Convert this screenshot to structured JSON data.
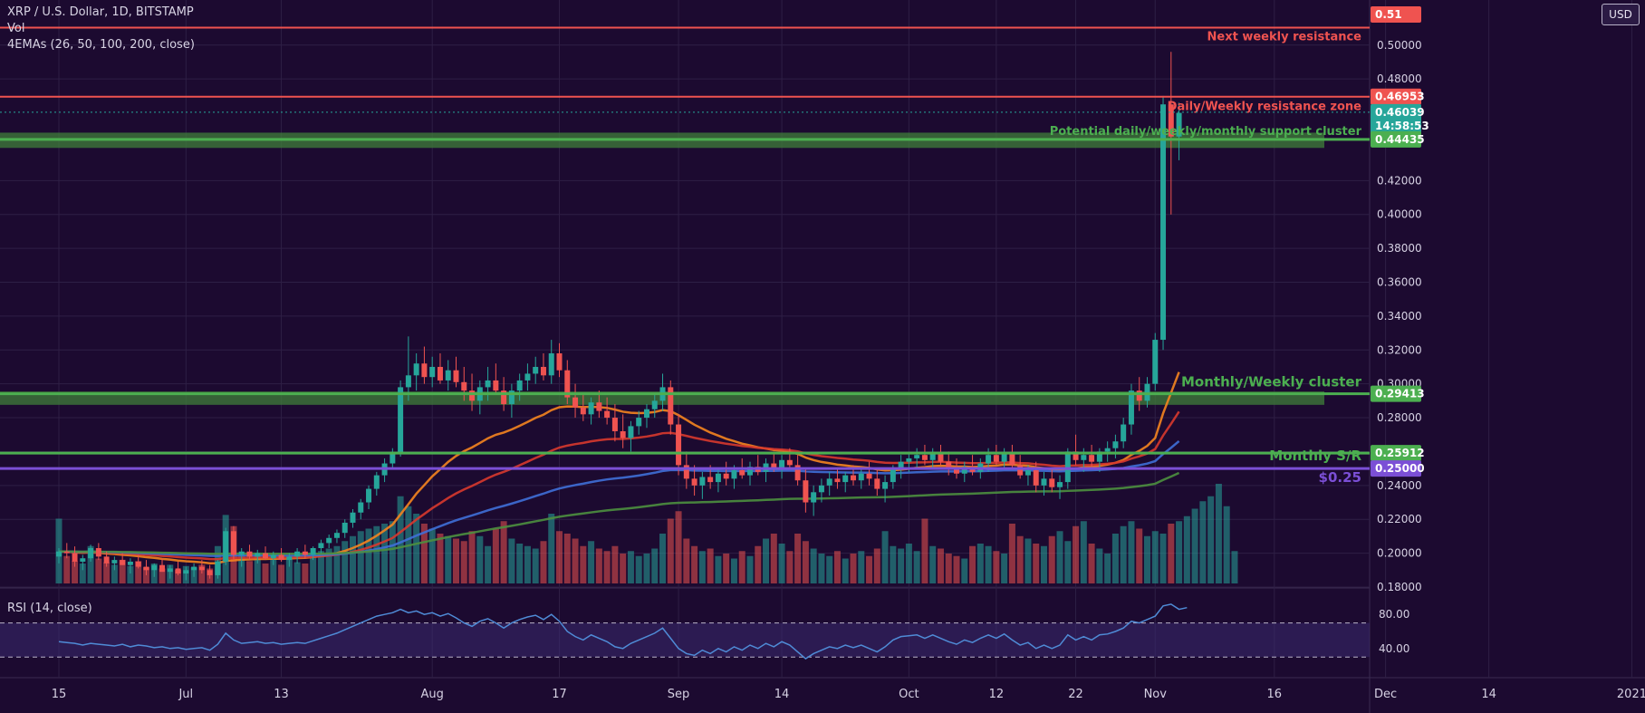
{
  "header": {
    "title": "XRP / U.S. Dollar, 1D, BITSTAMP",
    "vol_label": "Vol",
    "ema_label": "4EMAs (26, 50, 100, 200, close)",
    "rsi_label": "RSI (14, close)",
    "currency_button": "USD"
  },
  "colors": {
    "background": "#1c0a30",
    "up": "#26a69a",
    "down": "#ef5350",
    "resistance": "#ef5350",
    "support": "#4caf50",
    "level_025": "#7b4fd6",
    "ema26": "#f5841f",
    "ema50": "#d8382e",
    "ema100": "#3f6fd8",
    "ema200": "#4d8f3f",
    "rsi": "#4f8bd6"
  },
  "chart_data": {
    "type": "candlestick",
    "symbol": "XRP / U.S. Dollar",
    "interval": "1D",
    "exchange": "BITSTAMP",
    "y_axis": {
      "ticks": [
        "0.50000",
        "0.48000",
        "0.42000",
        "0.40000",
        "0.38000",
        "0.36000",
        "0.34000",
        "0.32000",
        "0.30000",
        "0.28000",
        "0.26000",
        "0.24000",
        "0.22000",
        "0.20000",
        "0.18000"
      ],
      "ylim": [
        0.18,
        0.517
      ]
    },
    "x_axis": {
      "labels": [
        {
          "label": "15",
          "index": 0
        },
        {
          "label": "Jul",
          "index": 16
        },
        {
          "label": "13",
          "index": 28
        },
        {
          "label": "Aug",
          "index": 47
        },
        {
          "label": "17",
          "index": 63
        },
        {
          "label": "Sep",
          "index": 78
        },
        {
          "label": "14",
          "index": 91
        },
        {
          "label": "Oct",
          "index": 107
        },
        {
          "label": "12",
          "index": 118
        },
        {
          "label": "22",
          "index": 128
        },
        {
          "label": "Nov",
          "index": 138
        },
        {
          "label": "16",
          "index": 153
        },
        {
          "label": "Dec",
          "index": 167
        },
        {
          "label": "14",
          "index": 180
        },
        {
          "label": "2021",
          "index": 198
        }
      ]
    },
    "price_tags": [
      {
        "value": "0.51",
        "price": 0.5103,
        "color": "#ef5350"
      },
      {
        "value": "0.46953",
        "price": 0.46953,
        "color": "#ef5350"
      },
      {
        "value": "0.46039",
        "price": 0.46039,
        "color": "#26a69a"
      },
      {
        "value": "14:58:53",
        "price": 0.4522,
        "color": "#26a69a"
      },
      {
        "value": "0.44435",
        "price": 0.44435,
        "color": "#4caf50"
      },
      {
        "value": "0.29413",
        "price": 0.29413,
        "color": "#4caf50"
      },
      {
        "value": "0.25912",
        "price": 0.25912,
        "color": "#4caf50"
      },
      {
        "value": "0.25000",
        "price": 0.25,
        "color": "#7b4fd6"
      }
    ],
    "levels": [
      {
        "label": "Next weekly resistance",
        "price": 0.5103,
        "type": "resistance"
      },
      {
        "label": "Daily/Weekly resistance zone",
        "price": 0.46953,
        "type": "resistance"
      },
      {
        "label": "Potential daily/weekly/monthly support cluster",
        "price": 0.44435,
        "zone_top": 0.4483,
        "zone_bottom": 0.4393,
        "type": "support"
      },
      {
        "label": "Monthly/Weekly cluster",
        "price": 0.29413,
        "zone_top": 0.2955,
        "zone_bottom": 0.2876,
        "type": "support"
      },
      {
        "label": "Monthly S/R",
        "price": 0.25912,
        "type": "support"
      },
      {
        "label": "$0.25",
        "price": 0.25,
        "type": "level"
      }
    ],
    "candles_ohlc": [
      [
        0.198,
        0.203,
        0.194,
        0.201
      ],
      [
        0.201,
        0.206,
        0.197,
        0.2
      ],
      [
        0.2,
        0.204,
        0.192,
        0.195
      ],
      [
        0.195,
        0.199,
        0.19,
        0.197
      ],
      [
        0.197,
        0.205,
        0.195,
        0.203
      ],
      [
        0.203,
        0.206,
        0.196,
        0.198
      ],
      [
        0.198,
        0.201,
        0.192,
        0.194
      ],
      [
        0.194,
        0.198,
        0.19,
        0.196
      ],
      [
        0.196,
        0.2,
        0.193,
        0.193
      ],
      [
        0.193,
        0.197,
        0.188,
        0.195
      ],
      [
        0.195,
        0.199,
        0.191,
        0.192
      ],
      [
        0.192,
        0.196,
        0.187,
        0.19
      ],
      [
        0.19,
        0.194,
        0.186,
        0.193
      ],
      [
        0.193,
        0.197,
        0.189,
        0.189
      ],
      [
        0.189,
        0.193,
        0.185,
        0.191
      ],
      [
        0.191,
        0.195,
        0.187,
        0.188
      ],
      [
        0.188,
        0.192,
        0.184,
        0.19
      ],
      [
        0.19,
        0.194,
        0.186,
        0.192
      ],
      [
        0.192,
        0.196,
        0.188,
        0.19
      ],
      [
        0.19,
        0.193,
        0.185,
        0.187
      ],
      [
        0.187,
        0.196,
        0.185,
        0.195
      ],
      [
        0.195,
        0.215,
        0.193,
        0.213
      ],
      [
        0.213,
        0.216,
        0.196,
        0.199
      ],
      [
        0.199,
        0.203,
        0.192,
        0.201
      ],
      [
        0.201,
        0.205,
        0.196,
        0.198
      ],
      [
        0.198,
        0.202,
        0.194,
        0.2
      ],
      [
        0.2,
        0.204,
        0.196,
        0.197
      ],
      [
        0.197,
        0.201,
        0.193,
        0.199
      ],
      [
        0.199,
        0.203,
        0.195,
        0.196
      ],
      [
        0.196,
        0.2,
        0.192,
        0.198
      ],
      [
        0.198,
        0.203,
        0.194,
        0.201
      ],
      [
        0.201,
        0.205,
        0.197,
        0.199
      ],
      [
        0.199,
        0.204,
        0.196,
        0.203
      ],
      [
        0.203,
        0.208,
        0.2,
        0.206
      ],
      [
        0.206,
        0.211,
        0.203,
        0.209
      ],
      [
        0.209,
        0.214,
        0.206,
        0.212
      ],
      [
        0.212,
        0.22,
        0.209,
        0.218
      ],
      [
        0.218,
        0.226,
        0.215,
        0.224
      ],
      [
        0.224,
        0.232,
        0.22,
        0.23
      ],
      [
        0.23,
        0.24,
        0.226,
        0.238
      ],
      [
        0.238,
        0.248,
        0.234,
        0.246
      ],
      [
        0.246,
        0.256,
        0.242,
        0.253
      ],
      [
        0.253,
        0.262,
        0.25,
        0.259
      ],
      [
        0.259,
        0.302,
        0.257,
        0.298
      ],
      [
        0.298,
        0.328,
        0.29,
        0.305
      ],
      [
        0.305,
        0.318,
        0.296,
        0.312
      ],
      [
        0.312,
        0.322,
        0.3,
        0.304
      ],
      [
        0.304,
        0.316,
        0.298,
        0.31
      ],
      [
        0.31,
        0.318,
        0.3,
        0.302
      ],
      [
        0.302,
        0.314,
        0.296,
        0.308
      ],
      [
        0.308,
        0.316,
        0.298,
        0.301
      ],
      [
        0.301,
        0.31,
        0.29,
        0.296
      ],
      [
        0.296,
        0.306,
        0.284,
        0.29
      ],
      [
        0.29,
        0.302,
        0.282,
        0.298
      ],
      [
        0.298,
        0.31,
        0.29,
        0.302
      ],
      [
        0.302,
        0.312,
        0.294,
        0.296
      ],
      [
        0.296,
        0.304,
        0.284,
        0.288
      ],
      [
        0.288,
        0.3,
        0.28,
        0.296
      ],
      [
        0.296,
        0.306,
        0.29,
        0.302
      ],
      [
        0.302,
        0.312,
        0.296,
        0.306
      ],
      [
        0.306,
        0.316,
        0.3,
        0.31
      ],
      [
        0.31,
        0.318,
        0.302,
        0.305
      ],
      [
        0.305,
        0.326,
        0.3,
        0.318
      ],
      [
        0.318,
        0.324,
        0.304,
        0.308
      ],
      [
        0.308,
        0.314,
        0.288,
        0.292
      ],
      [
        0.292,
        0.3,
        0.28,
        0.286
      ],
      [
        0.286,
        0.294,
        0.278,
        0.282
      ],
      [
        0.282,
        0.292,
        0.276,
        0.289
      ],
      [
        0.289,
        0.296,
        0.28,
        0.284
      ],
      [
        0.284,
        0.292,
        0.276,
        0.28
      ],
      [
        0.28,
        0.288,
        0.266,
        0.272
      ],
      [
        0.272,
        0.282,
        0.262,
        0.268
      ],
      [
        0.268,
        0.278,
        0.26,
        0.275
      ],
      [
        0.275,
        0.284,
        0.27,
        0.28
      ],
      [
        0.28,
        0.288,
        0.274,
        0.285
      ],
      [
        0.285,
        0.294,
        0.28,
        0.29
      ],
      [
        0.29,
        0.306,
        0.284,
        0.298
      ],
      [
        0.298,
        0.302,
        0.27,
        0.276
      ],
      [
        0.276,
        0.282,
        0.246,
        0.252
      ],
      [
        0.252,
        0.26,
        0.238,
        0.244
      ],
      [
        0.244,
        0.252,
        0.234,
        0.24
      ],
      [
        0.24,
        0.248,
        0.232,
        0.245
      ],
      [
        0.245,
        0.252,
        0.238,
        0.242
      ],
      [
        0.242,
        0.25,
        0.236,
        0.247
      ],
      [
        0.247,
        0.254,
        0.24,
        0.244
      ],
      [
        0.244,
        0.252,
        0.238,
        0.249
      ],
      [
        0.249,
        0.256,
        0.244,
        0.246
      ],
      [
        0.246,
        0.254,
        0.24,
        0.251
      ],
      [
        0.251,
        0.258,
        0.246,
        0.248
      ],
      [
        0.248,
        0.256,
        0.242,
        0.253
      ],
      [
        0.253,
        0.26,
        0.248,
        0.25
      ],
      [
        0.25,
        0.258,
        0.244,
        0.255
      ],
      [
        0.255,
        0.262,
        0.25,
        0.252
      ],
      [
        0.252,
        0.258,
        0.24,
        0.243
      ],
      [
        0.243,
        0.25,
        0.224,
        0.23
      ],
      [
        0.23,
        0.24,
        0.222,
        0.236
      ],
      [
        0.236,
        0.244,
        0.23,
        0.24
      ],
      [
        0.24,
        0.248,
        0.234,
        0.244
      ],
      [
        0.244,
        0.25,
        0.238,
        0.242
      ],
      [
        0.242,
        0.248,
        0.236,
        0.246
      ],
      [
        0.246,
        0.252,
        0.24,
        0.243
      ],
      [
        0.243,
        0.25,
        0.238,
        0.247
      ],
      [
        0.247,
        0.254,
        0.24,
        0.244
      ],
      [
        0.244,
        0.25,
        0.234,
        0.238
      ],
      [
        0.238,
        0.246,
        0.23,
        0.242
      ],
      [
        0.242,
        0.252,
        0.238,
        0.25
      ],
      [
        0.25,
        0.258,
        0.244,
        0.254
      ],
      [
        0.254,
        0.26,
        0.248,
        0.256
      ],
      [
        0.256,
        0.262,
        0.25,
        0.258
      ],
      [
        0.258,
        0.264,
        0.252,
        0.255
      ],
      [
        0.255,
        0.262,
        0.25,
        0.259
      ],
      [
        0.259,
        0.264,
        0.252,
        0.254
      ],
      [
        0.254,
        0.26,
        0.246,
        0.25
      ],
      [
        0.25,
        0.256,
        0.244,
        0.247
      ],
      [
        0.247,
        0.254,
        0.242,
        0.251
      ],
      [
        0.251,
        0.258,
        0.246,
        0.248
      ],
      [
        0.248,
        0.256,
        0.244,
        0.253
      ],
      [
        0.253,
        0.262,
        0.248,
        0.258
      ],
      [
        0.258,
        0.264,
        0.252,
        0.254
      ],
      [
        0.254,
        0.262,
        0.25,
        0.259
      ],
      [
        0.259,
        0.264,
        0.25,
        0.252
      ],
      [
        0.252,
        0.258,
        0.244,
        0.246
      ],
      [
        0.246,
        0.252,
        0.24,
        0.249
      ],
      [
        0.249,
        0.254,
        0.236,
        0.24
      ],
      [
        0.24,
        0.248,
        0.234,
        0.244
      ],
      [
        0.244,
        0.25,
        0.236,
        0.239
      ],
      [
        0.239,
        0.246,
        0.232,
        0.242
      ],
      [
        0.242,
        0.262,
        0.238,
        0.26
      ],
      [
        0.26,
        0.27,
        0.252,
        0.255
      ],
      [
        0.255,
        0.262,
        0.248,
        0.258
      ],
      [
        0.258,
        0.264,
        0.25,
        0.254
      ],
      [
        0.254,
        0.262,
        0.248,
        0.26
      ],
      [
        0.26,
        0.266,
        0.254,
        0.262
      ],
      [
        0.262,
        0.27,
        0.256,
        0.266
      ],
      [
        0.266,
        0.28,
        0.262,
        0.276
      ],
      [
        0.276,
        0.3,
        0.27,
        0.296
      ],
      [
        0.296,
        0.304,
        0.284,
        0.29
      ],
      [
        0.29,
        0.304,
        0.286,
        0.3
      ],
      [
        0.3,
        0.33,
        0.296,
        0.326
      ],
      [
        0.326,
        0.47,
        0.32,
        0.465
      ],
      [
        0.465,
        0.496,
        0.4,
        0.446
      ],
      [
        0.446,
        0.466,
        0.432,
        0.46
      ]
    ],
    "volume": [
      0.52,
      0.22,
      0.18,
      0.16,
      0.3,
      0.2,
      0.17,
      0.15,
      0.19,
      0.14,
      0.18,
      0.13,
      0.16,
      0.12,
      0.15,
      0.11,
      0.14,
      0.13,
      0.15,
      0.12,
      0.3,
      0.55,
      0.46,
      0.25,
      0.18,
      0.22,
      0.16,
      0.2,
      0.15,
      0.19,
      0.17,
      0.16,
      0.22,
      0.26,
      0.28,
      0.3,
      0.34,
      0.38,
      0.42,
      0.44,
      0.46,
      0.48,
      0.5,
      0.7,
      0.62,
      0.56,
      0.48,
      0.44,
      0.4,
      0.38,
      0.36,
      0.34,
      0.42,
      0.38,
      0.3,
      0.44,
      0.5,
      0.36,
      0.32,
      0.3,
      0.28,
      0.34,
      0.56,
      0.42,
      0.4,
      0.36,
      0.3,
      0.34,
      0.28,
      0.26,
      0.3,
      0.24,
      0.26,
      0.22,
      0.24,
      0.28,
      0.4,
      0.52,
      0.58,
      0.36,
      0.3,
      0.26,
      0.28,
      0.22,
      0.24,
      0.2,
      0.26,
      0.22,
      0.3,
      0.36,
      0.4,
      0.32,
      0.26,
      0.4,
      0.34,
      0.28,
      0.24,
      0.22,
      0.26,
      0.2,
      0.24,
      0.26,
      0.22,
      0.28,
      0.42,
      0.3,
      0.28,
      0.32,
      0.26,
      0.52,
      0.3,
      0.28,
      0.24,
      0.22,
      0.2,
      0.3,
      0.32,
      0.3,
      0.26,
      0.24,
      0.48,
      0.38,
      0.36,
      0.32,
      0.3,
      0.38,
      0.42,
      0.34,
      0.46,
      0.5,
      0.32,
      0.28,
      0.24,
      0.4,
      0.46,
      0.5,
      0.44,
      0.38,
      0.42,
      0.4,
      0.48,
      0.5,
      0.54,
      0.6,
      0.66,
      0.7,
      0.8,
      0.62,
      0.26
    ],
    "rsi": [
      48,
      47,
      46,
      44,
      46,
      45,
      44,
      43,
      45,
      42,
      44,
      43,
      41,
      42,
      40,
      41,
      39,
      40,
      41,
      38,
      45,
      58,
      50,
      46,
      47,
      48,
      46,
      47,
      45,
      46,
      47,
      46,
      49,
      52,
      55,
      58,
      62,
      66,
      70,
      74,
      78,
      80,
      82,
      86,
      82,
      84,
      80,
      82,
      78,
      81,
      76,
      70,
      66,
      72,
      75,
      70,
      64,
      70,
      74,
      77,
      79,
      74,
      80,
      72,
      60,
      54,
      50,
      56,
      52,
      48,
      42,
      40,
      46,
      50,
      54,
      58,
      64,
      52,
      40,
      34,
      32,
      38,
      34,
      40,
      36,
      42,
      38,
      44,
      40,
      46,
      42,
      48,
      44,
      36,
      28,
      34,
      38,
      42,
      40,
      44,
      41,
      44,
      40,
      36,
      42,
      50,
      54,
      55,
      56,
      52,
      56,
      52,
      48,
      45,
      50,
      47,
      52,
      56,
      52,
      57,
      50,
      44,
      47,
      40,
      44,
      40,
      44,
      56,
      50,
      54,
      50,
      56,
      57,
      60,
      64,
      72,
      70,
      74,
      78,
      90,
      92,
      86,
      88
    ],
    "rsi_axis": {
      "ticks": [
        "80.00",
        "40.00"
      ],
      "ylim": [
        10,
        110
      ]
    }
  }
}
